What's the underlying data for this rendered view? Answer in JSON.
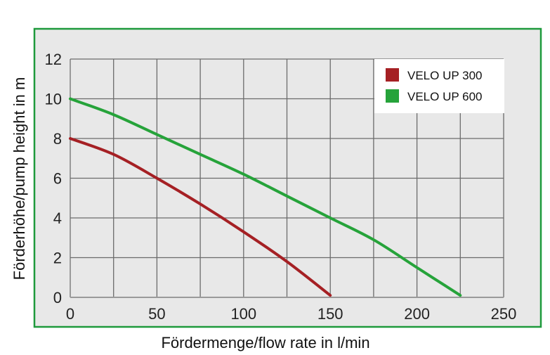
{
  "chart_data": {
    "type": "line",
    "title": "",
    "xlabel": "Fördermenge/flow rate in l/min",
    "ylabel": "Förderhöhe/pump height in m",
    "xlim": [
      0,
      250
    ],
    "ylim": [
      0,
      12
    ],
    "x_ticks": [
      0,
      50,
      100,
      150,
      200,
      250
    ],
    "y_ticks": [
      0,
      2,
      4,
      6,
      8,
      10,
      12
    ],
    "x_grid_step": 25,
    "y_grid_step": 2,
    "grid": true,
    "legend_position": "top-right",
    "series": [
      {
        "name": "VELO UP 300",
        "color": "#a52024",
        "x": [
          0,
          25,
          50,
          75,
          100,
          125,
          150
        ],
        "y": [
          8.0,
          7.2,
          6.0,
          4.7,
          3.3,
          1.8,
          0.1
        ]
      },
      {
        "name": "VELO UP 600",
        "color": "#26a33a",
        "x": [
          0,
          25,
          50,
          75,
          100,
          125,
          150,
          175,
          200,
          225
        ],
        "y": [
          10.0,
          9.2,
          8.2,
          7.2,
          6.2,
          5.1,
          4.0,
          2.9,
          1.5,
          0.1
        ]
      }
    ]
  },
  "style": {
    "frame_color": "#1e9a3c",
    "plot_bg": "#e8e8e8",
    "grid_color": "#6b6b6b"
  }
}
